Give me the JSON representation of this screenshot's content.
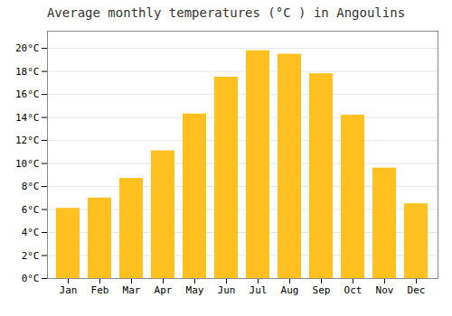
{
  "chart_data": {
    "type": "bar",
    "title": "Average monthly temperatures (°C ) in Angoulins",
    "categories": [
      "Jan",
      "Feb",
      "Mar",
      "Apr",
      "May",
      "Jun",
      "Jul",
      "Aug",
      "Sep",
      "Oct",
      "Nov",
      "Dec"
    ],
    "values": [
      6.1,
      7.0,
      8.7,
      11.1,
      14.3,
      17.5,
      19.8,
      19.5,
      17.8,
      14.2,
      9.6,
      6.5
    ],
    "color": "#FFC020",
    "ylim": [
      0,
      21.5
    ],
    "yticks": [
      {
        "value": 0,
        "label": "0°C"
      },
      {
        "value": 2,
        "label": "2°C"
      },
      {
        "value": 4,
        "label": "4°C"
      },
      {
        "value": 6,
        "label": "6°C"
      },
      {
        "value": 8,
        "label": "8°C"
      },
      {
        "value": 10,
        "label": "10°C"
      },
      {
        "value": 12,
        "label": "12°C"
      },
      {
        "value": 14,
        "label": "14°C"
      },
      {
        "value": 16,
        "label": "16°C"
      },
      {
        "value": 18,
        "label": "18°C"
      },
      {
        "value": 20,
        "label": "20°C"
      }
    ],
    "grid": true
  }
}
